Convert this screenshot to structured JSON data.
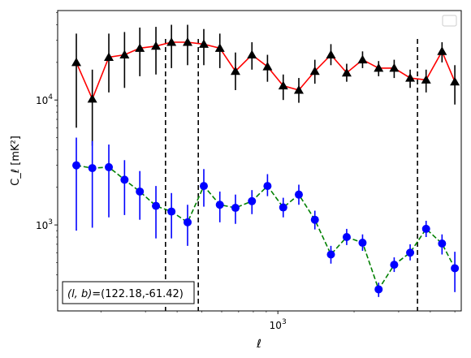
{
  "chart_data": {
    "type": "scatter",
    "xlabel": "ℓ",
    "ylabel": "C_ℓ  [mK²]",
    "xscale": "log",
    "yscale": "log",
    "xlim": [
      135,
      5300
    ],
    "ylim": [
      205,
      52000
    ],
    "xticks": [
      {
        "value": 1000,
        "base": "10",
        "exp": "3"
      }
    ],
    "yticks": [
      {
        "value": 1000,
        "base": "10",
        "exp": "3"
      },
      {
        "value": 10000,
        "base": "10",
        "exp": "4"
      }
    ],
    "grid": false,
    "legend": {
      "position": "top-right",
      "entries": []
    },
    "annotation": {
      "text_prefix": "(l, b)",
      "text": "=(122.18,-61.42)",
      "position": "bottom-left"
    },
    "vlines": [
      {
        "x": 360,
        "style": "dashed",
        "color": "#000000"
      },
      {
        "x": 485,
        "style": "dashed",
        "color": "#000000"
      },
      {
        "x": 3560,
        "style": "dashed",
        "color": "#000000"
      }
    ],
    "series": [
      {
        "marker": "triangle",
        "marker_color": "#000000",
        "line_color": "#ff0000",
        "line_style": "solid",
        "errorbar_color": "#000000",
        "points": [
          {
            "x": 160,
            "y": 20000,
            "lo": 6000,
            "hi": 34000
          },
          {
            "x": 185,
            "y": 10200,
            "lo": 4300,
            "hi": 17500
          },
          {
            "x": 215,
            "y": 22000,
            "lo": 11500,
            "hi": 34000
          },
          {
            "x": 248,
            "y": 23000,
            "lo": 12500,
            "hi": 35000
          },
          {
            "x": 285,
            "y": 26000,
            "lo": 15500,
            "hi": 38000
          },
          {
            "x": 330,
            "y": 27000,
            "lo": 16000,
            "hi": 38500
          },
          {
            "x": 380,
            "y": 29000,
            "lo": 18000,
            "hi": 40000
          },
          {
            "x": 440,
            "y": 29000,
            "lo": 19000,
            "hi": 40000
          },
          {
            "x": 510,
            "y": 28000,
            "lo": 19000,
            "hi": 37000
          },
          {
            "x": 590,
            "y": 26000,
            "lo": 18000,
            "hi": 34000
          },
          {
            "x": 680,
            "y": 17000,
            "lo": 12000,
            "hi": 24000
          },
          {
            "x": 790,
            "y": 23000,
            "lo": 17500,
            "hi": 29000
          },
          {
            "x": 910,
            "y": 18500,
            "lo": 14000,
            "hi": 23000
          },
          {
            "x": 1050,
            "y": 13000,
            "lo": 10000,
            "hi": 16000
          },
          {
            "x": 1210,
            "y": 12000,
            "lo": 9500,
            "hi": 15000
          },
          {
            "x": 1400,
            "y": 17000,
            "lo": 13500,
            "hi": 21000
          },
          {
            "x": 1620,
            "y": 23000,
            "lo": 19000,
            "hi": 28000
          },
          {
            "x": 1870,
            "y": 16500,
            "lo": 14000,
            "hi": 19500
          },
          {
            "x": 2160,
            "y": 21000,
            "lo": 18000,
            "hi": 24500
          },
          {
            "x": 2500,
            "y": 18000,
            "lo": 15500,
            "hi": 20500
          },
          {
            "x": 2880,
            "y": 18000,
            "lo": 15000,
            "hi": 21000
          },
          {
            "x": 3330,
            "y": 15000,
            "lo": 12500,
            "hi": 17500
          },
          {
            "x": 3850,
            "y": 14500,
            "lo": 11500,
            "hi": 17500
          },
          {
            "x": 4450,
            "y": 24500,
            "lo": 20000,
            "hi": 29000
          },
          {
            "x": 5000,
            "y": 14000,
            "lo": 9200,
            "hi": 19000
          }
        ]
      },
      {
        "marker": "circle",
        "marker_color": "#0000ff",
        "line_color": "#008000",
        "line_style": "dashed",
        "errorbar_color": "#0000ff",
        "points": [
          {
            "x": 160,
            "y": 3000,
            "lo": 900,
            "hi": 5000
          },
          {
            "x": 185,
            "y": 2850,
            "lo": 950,
            "hi": 4700
          },
          {
            "x": 215,
            "y": 2900,
            "lo": 1150,
            "hi": 4400
          },
          {
            "x": 248,
            "y": 2300,
            "lo": 1200,
            "hi": 3300
          },
          {
            "x": 285,
            "y": 1850,
            "lo": 1100,
            "hi": 2700
          },
          {
            "x": 330,
            "y": 1420,
            "lo": 780,
            "hi": 2050
          },
          {
            "x": 380,
            "y": 1280,
            "lo": 780,
            "hi": 1800
          },
          {
            "x": 440,
            "y": 1050,
            "lo": 680,
            "hi": 1450
          },
          {
            "x": 510,
            "y": 2050,
            "lo": 1400,
            "hi": 2800
          },
          {
            "x": 590,
            "y": 1450,
            "lo": 1050,
            "hi": 1850
          },
          {
            "x": 680,
            "y": 1370,
            "lo": 1020,
            "hi": 1750
          },
          {
            "x": 790,
            "y": 1550,
            "lo": 1220,
            "hi": 1900
          },
          {
            "x": 910,
            "y": 2050,
            "lo": 1700,
            "hi": 2550
          },
          {
            "x": 1050,
            "y": 1380,
            "lo": 1150,
            "hi": 1650
          },
          {
            "x": 1210,
            "y": 1750,
            "lo": 1450,
            "hi": 2100
          },
          {
            "x": 1400,
            "y": 1100,
            "lo": 920,
            "hi": 1300
          },
          {
            "x": 1620,
            "y": 580,
            "lo": 490,
            "hi": 680
          },
          {
            "x": 1870,
            "y": 800,
            "lo": 690,
            "hi": 930
          },
          {
            "x": 2160,
            "y": 720,
            "lo": 620,
            "hi": 840
          },
          {
            "x": 2500,
            "y": 305,
            "lo": 265,
            "hi": 345
          },
          {
            "x": 2880,
            "y": 480,
            "lo": 420,
            "hi": 550
          },
          {
            "x": 3330,
            "y": 600,
            "lo": 520,
            "hi": 700
          },
          {
            "x": 3850,
            "y": 930,
            "lo": 800,
            "hi": 1080
          },
          {
            "x": 4450,
            "y": 710,
            "lo": 580,
            "hi": 840
          },
          {
            "x": 5000,
            "y": 450,
            "lo": 290,
            "hi": 610
          }
        ]
      }
    ]
  }
}
